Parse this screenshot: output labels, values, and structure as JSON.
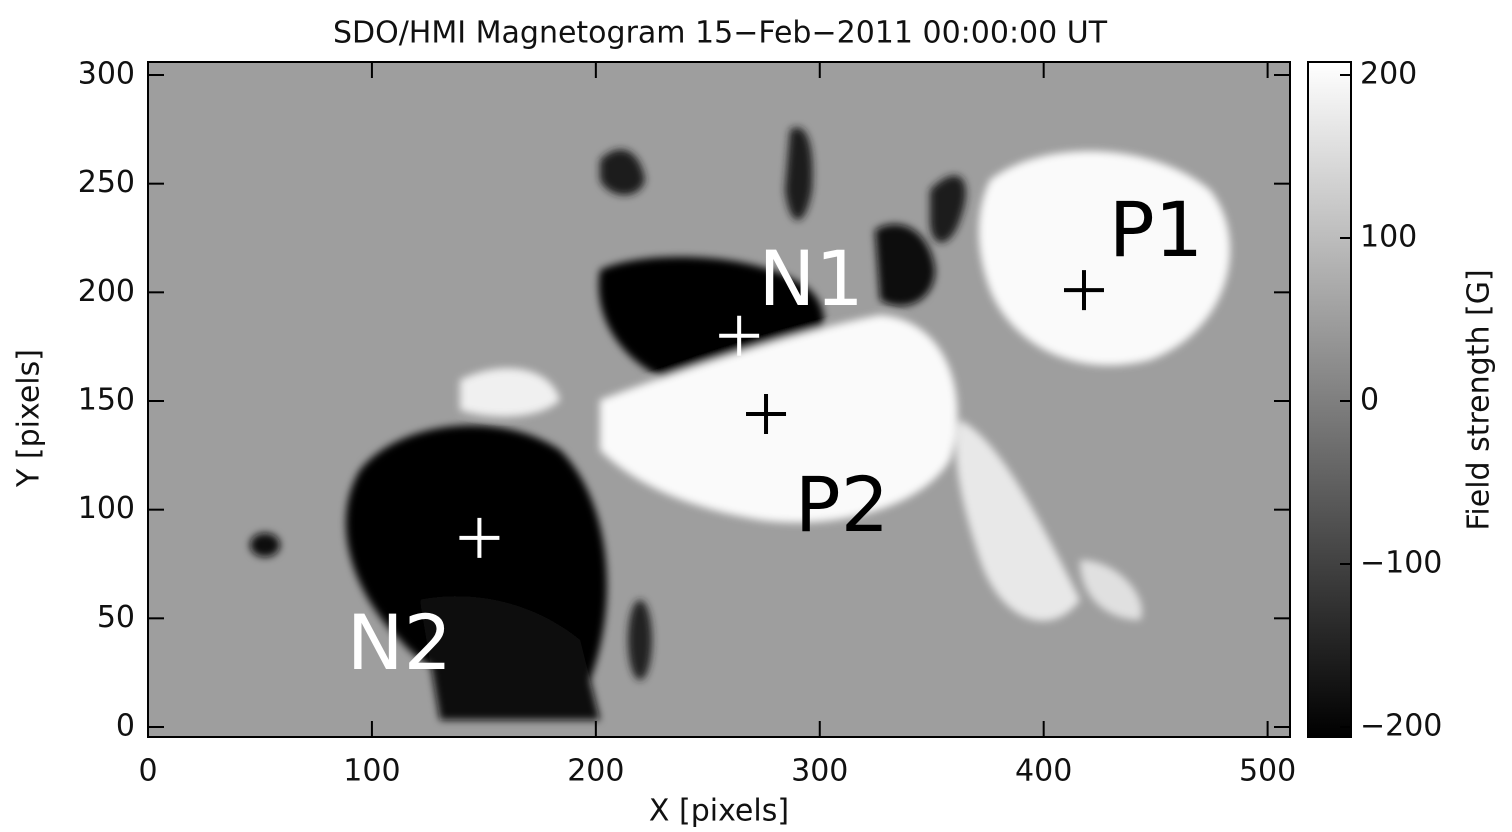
{
  "chart_data": {
    "type": "image",
    "title": "SDO/HMI Magnetogram 15−Feb−2011 00:00:00 UT",
    "xlabel": "X [pixels]",
    "ylabel": "Y [pixels]",
    "xlim": [
      0,
      510
    ],
    "ylim": [
      0,
      300
    ],
    "xticks": [
      0,
      100,
      200,
      300,
      400,
      500
    ],
    "yticks": [
      0,
      50,
      100,
      150,
      200,
      250,
      300
    ],
    "colorbar": {
      "label": "Field strength [G]",
      "lim": [
        -200,
        200
      ],
      "ticks": [
        {
          "value": -200,
          "label": "−200"
        },
        {
          "value": -100,
          "label": "−100"
        },
        0,
        100,
        200
      ],
      "colors": [
        "#000000",
        "#ffffff"
      ]
    },
    "annotations": [
      {
        "label": "N1",
        "x": 264,
        "y": 180,
        "color": "#ffffff"
      },
      {
        "label": "P1",
        "x": 418,
        "y": 201,
        "color": "#000000"
      },
      {
        "label": "P2",
        "x": 276,
        "y": 144,
        "color": "#000000"
      },
      {
        "label": "N2",
        "x": 148,
        "y": 87,
        "color": "#ffffff"
      }
    ]
  }
}
